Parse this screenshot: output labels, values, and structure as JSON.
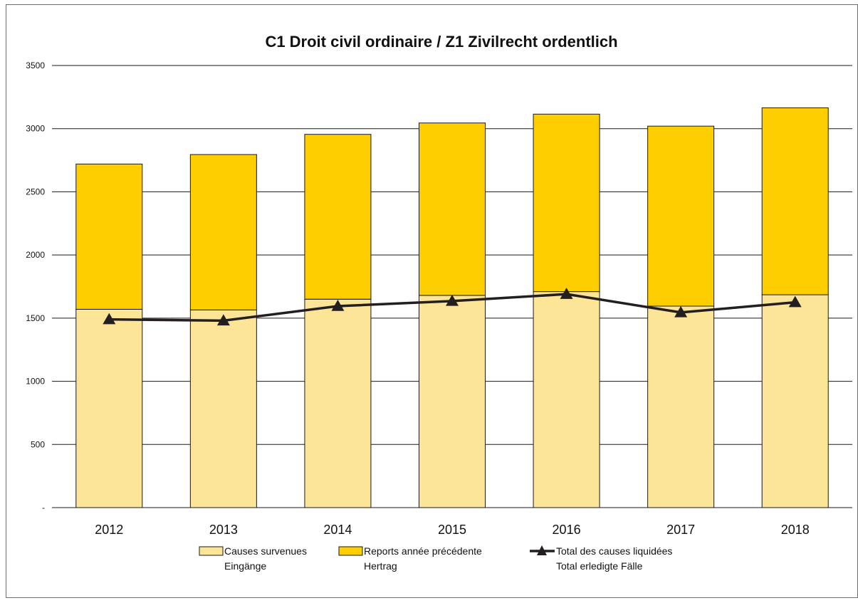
{
  "chart_data": {
    "type": "bar",
    "stacked": true,
    "title": "C1 Droit civil ordinaire / Z1 Zivilrecht ordentlich",
    "xlabel": "",
    "ylabel": "",
    "categories": [
      "2012",
      "2013",
      "2014",
      "2015",
      "2016",
      "2017",
      "2018"
    ],
    "ylim": [
      0,
      3500
    ],
    "yticks": [
      0,
      500,
      1000,
      1500,
      2000,
      2500,
      3000,
      3500
    ],
    "ytick_labels": [
      "-",
      "500",
      "1000",
      "1500",
      "2000",
      "2500",
      "3000",
      "3500"
    ],
    "grid": true,
    "legend_position": "bottom",
    "series": [
      {
        "name": "Causes survenues",
        "name_line2": "Eingänge",
        "kind": "bar",
        "color": "#FDE598",
        "values": [
          1570,
          1565,
          1650,
          1680,
          1710,
          1595,
          1685
        ]
      },
      {
        "name": "Reports année précédente",
        "name_line2": "Hertrag",
        "kind": "bar",
        "color": "#FFCE00",
        "values": [
          1150,
          1230,
          1305,
          1365,
          1405,
          1425,
          1480
        ]
      },
      {
        "name": "Total des causes liquidées",
        "name_line2": "Total erledigte Fälle",
        "kind": "line",
        "color": "#231F20",
        "marker": "triangle",
        "values": [
          1490,
          1480,
          1595,
          1635,
          1690,
          1545,
          1625
        ]
      }
    ]
  }
}
